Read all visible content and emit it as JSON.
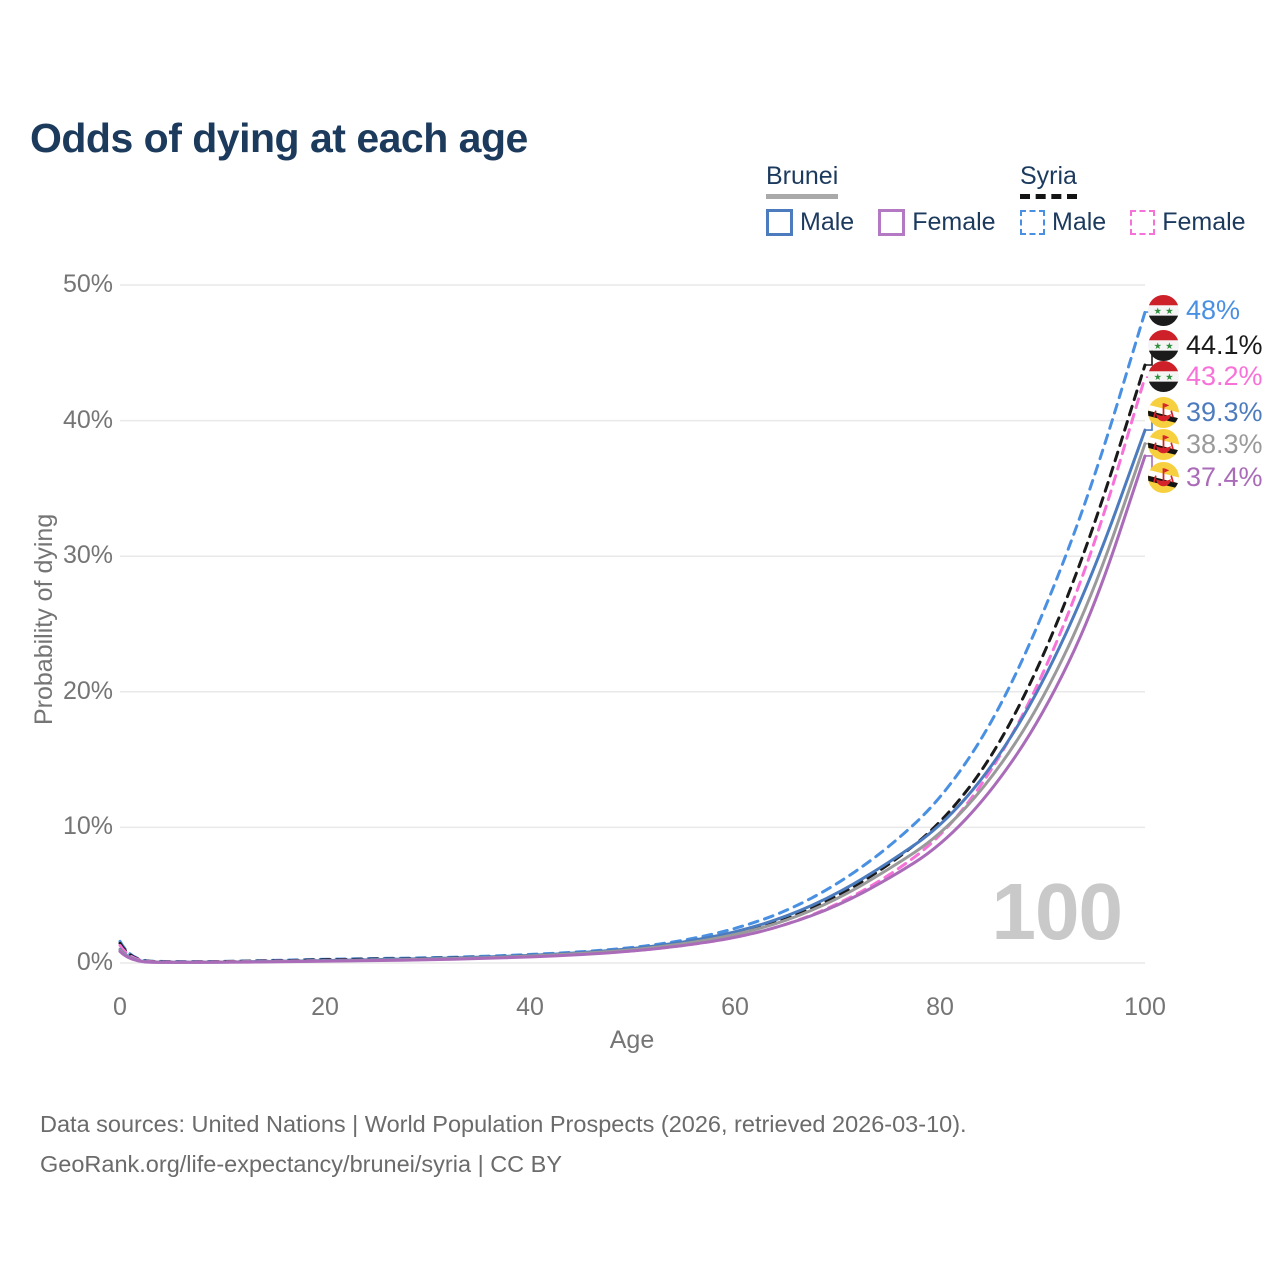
{
  "title": "Odds of dying at each age",
  "legend": {
    "brunei": {
      "country": "Brunei",
      "male": "Male",
      "female": "Female",
      "male_color": "#4d7cbe",
      "female_color": "#b379c2",
      "combined_color": "#a9a9a9"
    },
    "syria": {
      "country": "Syria",
      "male": "Male",
      "female": "Female",
      "male_color": "#4a90e2",
      "female_color": "#f772d8",
      "combined_color": "#141414"
    }
  },
  "axes": {
    "x_label": "Age",
    "y_label": "Probability of dying",
    "x_ticks": [
      "0",
      "20",
      "40",
      "60",
      "80",
      "100"
    ],
    "y_ticks": [
      "0%",
      "10%",
      "20%",
      "30%",
      "40%",
      "50%"
    ]
  },
  "watermark": "100",
  "footer": {
    "line1": "Data sources: United Nations | World Population Prospects (2026, retrieved 2026-03-10).",
    "line2": "GeoRank.org/life-expectancy/brunei/syria | CC BY"
  },
  "chart_data": {
    "type": "line",
    "title": "Odds of dying at each age",
    "xlabel": "Age",
    "ylabel": "Probability of dying",
    "xlim": [
      0,
      100
    ],
    "ylim_percent": [
      0,
      50
    ],
    "x_tick_values": [
      0,
      20,
      40,
      60,
      80,
      100
    ],
    "y_tick_values": [
      0,
      10,
      20,
      30,
      40,
      50
    ],
    "grid": "horizontal",
    "legend_position": "top-right",
    "ages": [
      0,
      1,
      5,
      10,
      15,
      20,
      25,
      30,
      35,
      40,
      45,
      50,
      55,
      60,
      65,
      70,
      75,
      80,
      85,
      90,
      95,
      100
    ],
    "series": [
      {
        "id": "syria-male",
        "name": "Syria Male",
        "color": "#4a90e2",
        "dash": "9 7",
        "values": [
          1.6,
          0.18,
          0.09,
          0.11,
          0.19,
          0.28,
          0.33,
          0.38,
          0.48,
          0.62,
          0.82,
          1.12,
          1.65,
          2.5,
          3.8,
          5.8,
          8.5,
          12.0,
          17.5,
          25.5,
          35.5,
          48.0
        ],
        "end_label": "48%",
        "flag": "syria"
      },
      {
        "id": "syria-combined",
        "name": "Syria",
        "color": "#1a1a1a",
        "dash": "9 7",
        "values": [
          1.45,
          0.16,
          0.08,
          0.1,
          0.16,
          0.24,
          0.29,
          0.34,
          0.43,
          0.55,
          0.73,
          1.0,
          1.45,
          2.1,
          3.2,
          4.9,
          7.2,
          10.2,
          15.0,
          22.3,
          32.0,
          44.1
        ],
        "end_label": "44.1%",
        "flag": "syria"
      },
      {
        "id": "syria-female",
        "name": "Syria Female",
        "color": "#f772d8",
        "dash": "9 7",
        "values": [
          1.3,
          0.14,
          0.07,
          0.09,
          0.13,
          0.19,
          0.24,
          0.29,
          0.37,
          0.48,
          0.64,
          0.88,
          1.27,
          1.85,
          2.8,
          4.3,
          6.4,
          9.2,
          14.0,
          21.0,
          30.5,
          43.2
        ],
        "end_label": "43.2%",
        "flag": "syria"
      },
      {
        "id": "brunei-male",
        "name": "Brunei Male",
        "color": "#4d7cbe",
        "dash": null,
        "values": [
          1.0,
          0.1,
          0.05,
          0.07,
          0.12,
          0.18,
          0.25,
          0.32,
          0.42,
          0.56,
          0.76,
          1.05,
          1.52,
          2.25,
          3.4,
          5.1,
          7.4,
          10.0,
          14.3,
          20.5,
          28.8,
          39.3
        ],
        "end_label": "39.3%",
        "flag": "brunei"
      },
      {
        "id": "brunei-combined",
        "name": "Brunei",
        "color": "#9a9a9a",
        "dash": null,
        "values": [
          0.95,
          0.09,
          0.045,
          0.06,
          0.1,
          0.15,
          0.21,
          0.28,
          0.37,
          0.5,
          0.69,
          0.96,
          1.4,
          2.05,
          3.1,
          4.7,
          6.9,
          9.4,
          13.5,
          19.3,
          27.3,
          38.3
        ],
        "end_label": "38.3%",
        "flag": "brunei"
      },
      {
        "id": "brunei-female",
        "name": "Brunei Female",
        "color": "#aa6cb8",
        "dash": null,
        "values": [
          0.85,
          0.08,
          0.04,
          0.05,
          0.09,
          0.13,
          0.18,
          0.24,
          0.32,
          0.44,
          0.61,
          0.87,
          1.27,
          1.85,
          2.8,
          4.2,
          6.2,
          8.6,
          12.6,
          18.2,
          26.0,
          37.4
        ],
        "end_label": "37.4%",
        "flag": "brunei"
      }
    ]
  }
}
